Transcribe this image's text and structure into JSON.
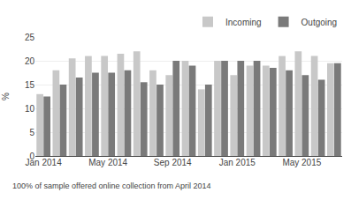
{
  "chart_data": {
    "type": "bar",
    "categories": [
      "Jan 2014",
      null,
      null,
      null,
      "May 2014",
      null,
      null,
      null,
      "Sep 2014",
      null,
      null,
      null,
      "Jan 2015",
      null,
      null,
      null,
      "May 2015",
      null,
      null
    ],
    "series": [
      {
        "name": "Incoming",
        "color": "#c8c8c8",
        "values": [
          13.0,
          18.0,
          20.5,
          21.0,
          21.0,
          21.5,
          22.0,
          18.0,
          17.0,
          20.0,
          14.0,
          20.0,
          17.0,
          19.0,
          19.0,
          21.0,
          22.0,
          21.0,
          19.5
        ]
      },
      {
        "name": "Outgoing",
        "color": "#7a7a7a",
        "values": [
          12.5,
          15.0,
          16.5,
          17.5,
          17.5,
          18.0,
          15.5,
          15.0,
          20.0,
          19.0,
          15.0,
          20.0,
          20.0,
          20.0,
          18.5,
          18.0,
          17.0,
          16.0,
          19.5
        ]
      }
    ],
    "ylabel": "%",
    "ylim": [
      0,
      25
    ],
    "yticks": [
      0,
      5,
      10,
      15,
      20,
      25
    ],
    "grid": true,
    "legend": "upper right",
    "annotations": [
      "100% of sample offered online collection from April 2014"
    ]
  }
}
